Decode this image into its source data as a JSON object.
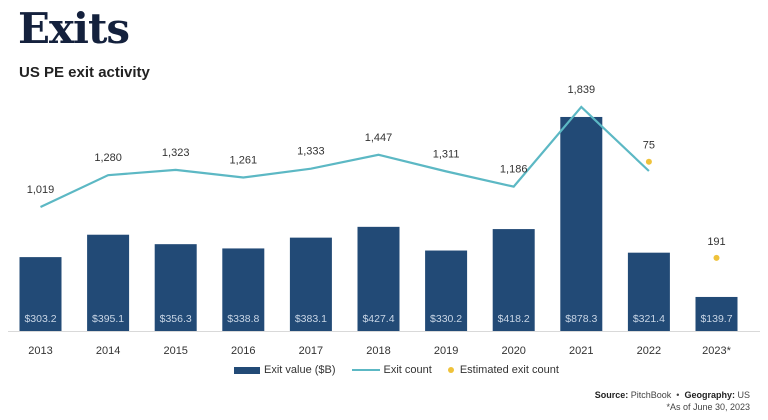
{
  "header": {
    "title": "Exits",
    "subtitle": "US PE exit activity"
  },
  "chart_data": {
    "type": "bar",
    "title": "US PE exit activity",
    "categories": [
      "2013",
      "2014",
      "2015",
      "2016",
      "2017",
      "2018",
      "2019",
      "2020",
      "2021",
      "2022",
      "2023*"
    ],
    "series": [
      {
        "name": "Exit value ($B)",
        "kind": "bar",
        "color": "#224a76",
        "values": [
          303.2,
          395.1,
          356.3,
          338.8,
          383.1,
          427.4,
          330.2,
          418.2,
          878.3,
          321.4,
          139.7
        ],
        "labels": [
          "$303.2",
          "$395.1",
          "$356.3",
          "$338.8",
          "$383.1",
          "$427.4",
          "$330.2",
          "$418.2",
          "$878.3",
          "$321.4",
          "$139.7"
        ]
      },
      {
        "name": "Exit count",
        "kind": "line",
        "color": "#5cb8c4",
        "values": [
          1019,
          1280,
          1323,
          1261,
          1333,
          1447,
          1311,
          1186,
          1839,
          1314,
          null
        ],
        "labels": [
          "1,019",
          "1,280",
          "1,323",
          "1,261",
          "1,333",
          "1,447",
          "1,311",
          "1,186",
          "1,839",
          "",
          ""
        ]
      },
      {
        "name": "Estimated exit count",
        "kind": "dot",
        "color": "#efc23a",
        "values": [
          null,
          null,
          null,
          null,
          null,
          null,
          null,
          null,
          null,
          1390,
          602
        ],
        "labels": [
          "",
          "",
          "",
          "",
          "",
          "",
          "",
          "",
          "",
          "75",
          "191"
        ]
      }
    ],
    "legend": [
      "Exit value ($B)",
      "Exit count",
      "Estimated exit count"
    ],
    "legend_position": "bottom",
    "grid": false
  },
  "footer": {
    "source_label": "Source:",
    "source_value": "PitchBook",
    "separator": "•",
    "geo_label": "Geography:",
    "geo_value": "US",
    "note": "*As of June 30, 2023"
  }
}
